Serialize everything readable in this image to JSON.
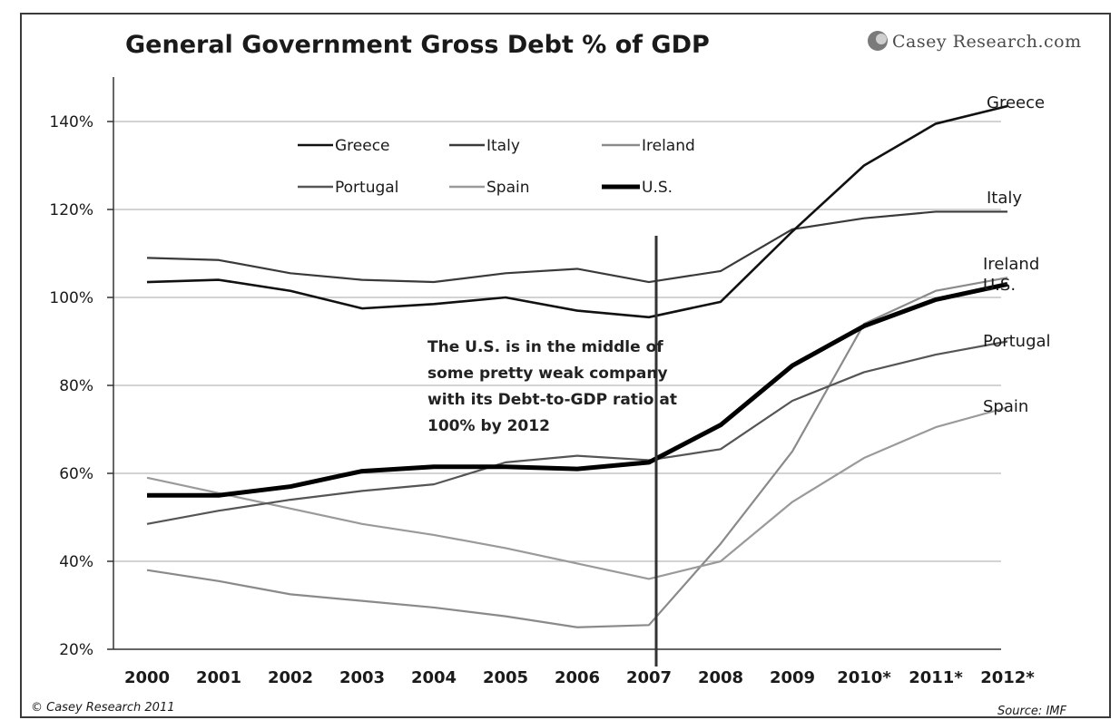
{
  "branding": {
    "logo_text": "Casey Research.com"
  },
  "footer": {
    "copyright": "© Casey Research 2011",
    "source": "Source: IMF"
  },
  "chart_data": {
    "type": "line",
    "title": "General Government Gross Debt % of GDP",
    "xlabel": "",
    "ylabel": "",
    "categories": [
      "2000",
      "2001",
      "2002",
      "2003",
      "2004",
      "2005",
      "2006",
      "2007",
      "2008",
      "2009",
      "2010*",
      "2011*",
      "2012*"
    ],
    "yticks": [
      "20%",
      "40%",
      "60%",
      "80%",
      "100%",
      "120%",
      "140%"
    ],
    "ylim": [
      20,
      150
    ],
    "grid": "horizontal",
    "legend_position": "top-left",
    "series": [
      {
        "name": "Greece",
        "color": "#111111",
        "values": [
          103.5,
          104,
          101.5,
          97.5,
          98.5,
          100,
          97,
          95.5,
          99,
          115,
          130,
          139.5,
          143.5
        ]
      },
      {
        "name": "Italy",
        "color": "#3a3a3a",
        "values": [
          109,
          108.5,
          105.5,
          104,
          103.5,
          105.5,
          106.5,
          103.5,
          106,
          115.5,
          118,
          119.5,
          119.5
        ]
      },
      {
        "name": "Ireland",
        "color": "#8a8a8a",
        "values": [
          38,
          35.5,
          32.5,
          31,
          29.5,
          27.5,
          25,
          25.5,
          44,
          65,
          94,
          101.5,
          104.5
        ]
      },
      {
        "name": "Portugal",
        "color": "#555555",
        "values": [
          48.5,
          51.5,
          54,
          56,
          57.5,
          62.5,
          64,
          63,
          65.5,
          76.5,
          83,
          87,
          90
        ]
      },
      {
        "name": "Spain",
        "color": "#9a9a9a",
        "values": [
          59,
          55.5,
          52,
          48.5,
          46,
          43,
          39.5,
          36,
          40,
          53.5,
          63.5,
          70.5,
          75
        ]
      },
      {
        "name": "U.S.",
        "color": "#000000",
        "values": [
          55,
          55,
          57,
          60.5,
          61.5,
          61.5,
          61,
          62.5,
          71,
          84.5,
          93.5,
          99.5,
          103
        ]
      }
    ],
    "end_labels": [
      "Greece",
      "Italy",
      "Ireland",
      "U.S.",
      "Portugal",
      "Spain"
    ],
    "marker_line_x": "2007",
    "annotation": [
      "The U.S. is in the middle of",
      "some pretty weak company",
      "with its Debt-to-GDP ratio at",
      "100% by 2012"
    ]
  }
}
